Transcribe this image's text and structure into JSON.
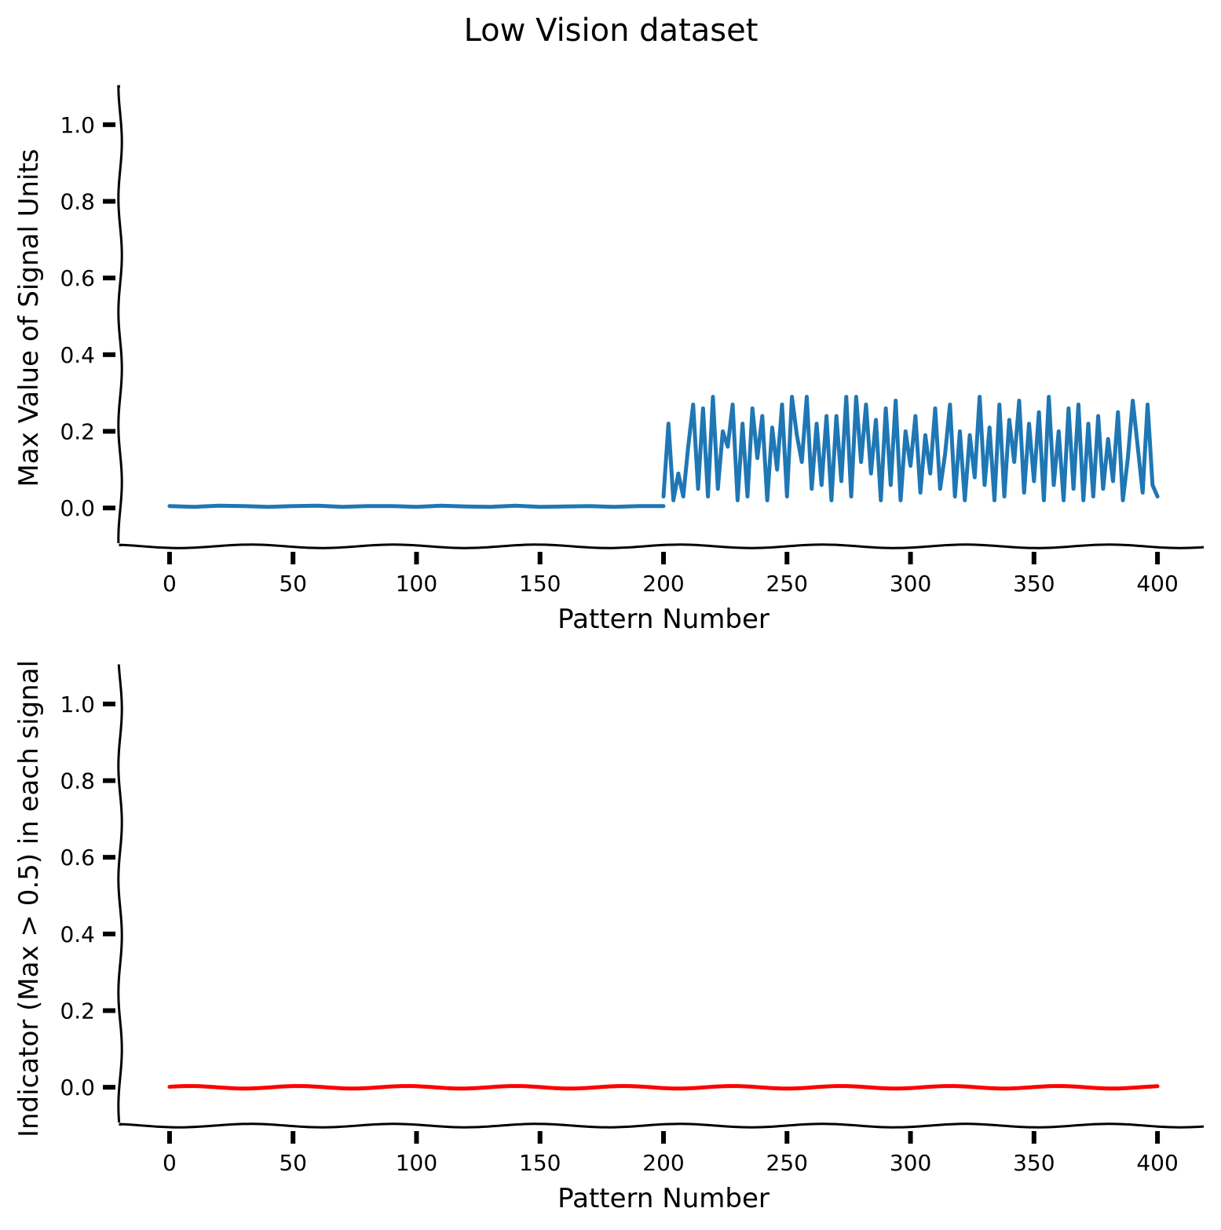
{
  "suptitle": "Low Vision dataset",
  "chart_data": [
    {
      "type": "line",
      "xlabel": "Pattern Number",
      "ylabel": "Max Value of Signal Units",
      "xlim": [
        -20,
        420
      ],
      "ylim": [
        -0.1,
        1.1
      ],
      "xticks": [
        0,
        50,
        100,
        150,
        200,
        250,
        300,
        350,
        400
      ],
      "xtick_labels": [
        "0",
        "50",
        "100",
        "150",
        "200",
        "250",
        "300",
        "350",
        "400"
      ],
      "yticks": [
        0.0,
        0.2,
        0.4,
        0.6,
        0.8,
        1.0
      ],
      "ytick_labels": [
        "0.0",
        "0.2",
        "0.4",
        "0.6",
        "0.8",
        "1.0"
      ],
      "grid": false,
      "series": [
        {
          "color": "#1f77b4",
          "segments": [
            {
              "x": [
                0,
                10,
                20,
                30,
                40,
                50,
                60,
                70,
                80,
                90,
                100,
                110,
                120,
                130,
                140,
                150,
                160,
                170,
                180,
                190,
                200
              ],
              "y": [
                0.005,
                0.003,
                0.006,
                0.005,
                0.003,
                0.005,
                0.006,
                0.003,
                0.005,
                0.005,
                0.003,
                0.006,
                0.004,
                0.003,
                0.006,
                0.003,
                0.004,
                0.005,
                0.003,
                0.005,
                0.005
              ]
            },
            {
              "x": [
                200,
                202,
                204,
                206,
                208,
                210,
                212,
                214,
                216,
                218,
                220,
                222,
                224,
                226,
                228,
                230,
                232,
                234,
                236,
                238,
                240,
                242,
                244,
                246,
                248,
                250,
                252,
                254,
                256,
                258,
                260,
                262,
                264,
                266,
                268,
                270,
                272,
                274,
                276,
                278,
                280,
                282,
                284,
                286,
                288,
                290,
                292,
                294,
                296,
                298,
                300,
                302,
                304,
                306,
                308,
                310,
                312,
                314,
                316,
                318,
                320,
                322,
                324,
                326,
                328,
                330,
                332,
                334,
                336,
                338,
                340,
                342,
                344,
                346,
                348,
                350,
                352,
                354,
                356,
                358,
                360,
                362,
                364,
                366,
                368,
                370,
                372,
                374,
                376,
                378,
                380,
                382,
                384,
                386,
                388,
                390,
                392,
                394,
                396,
                398,
                400
              ],
              "y": [
                0.03,
                0.22,
                0.02,
                0.09,
                0.03,
                0.16,
                0.27,
                0.05,
                0.26,
                0.03,
                0.29,
                0.05,
                0.2,
                0.16,
                0.27,
                0.02,
                0.22,
                0.03,
                0.26,
                0.13,
                0.24,
                0.02,
                0.21,
                0.1,
                0.27,
                0.03,
                0.29,
                0.19,
                0.12,
                0.29,
                0.05,
                0.22,
                0.06,
                0.24,
                0.02,
                0.24,
                0.07,
                0.29,
                0.03,
                0.29,
                0.12,
                0.27,
                0.09,
                0.23,
                0.02,
                0.26,
                0.06,
                0.28,
                0.02,
                0.2,
                0.11,
                0.24,
                0.04,
                0.19,
                0.09,
                0.26,
                0.05,
                0.14,
                0.27,
                0.03,
                0.2,
                0.02,
                0.19,
                0.08,
                0.29,
                0.06,
                0.21,
                0.02,
                0.27,
                0.03,
                0.23,
                0.12,
                0.28,
                0.04,
                0.22,
                0.07,
                0.25,
                0.02,
                0.29,
                0.06,
                0.2,
                0.02,
                0.26,
                0.05,
                0.27,
                0.02,
                0.22,
                0.03,
                0.24,
                0.05,
                0.18,
                0.07,
                0.25,
                0.02,
                0.13,
                0.28,
                0.16,
                0.04,
                0.27,
                0.06,
                0.03
              ]
            }
          ]
        }
      ]
    },
    {
      "type": "line",
      "xlabel": "Pattern Number",
      "ylabel": "Indicator (Max > 0.5) in each signal",
      "xlim": [
        -20,
        420
      ],
      "ylim": [
        -0.1,
        1.1
      ],
      "xticks": [
        0,
        50,
        100,
        150,
        200,
        250,
        300,
        350,
        400
      ],
      "xtick_labels": [
        "0",
        "50",
        "100",
        "150",
        "200",
        "250",
        "300",
        "350",
        "400"
      ],
      "yticks": [
        0.0,
        0.2,
        0.4,
        0.6,
        0.8,
        1.0
      ],
      "ytick_labels": [
        "0.0",
        "0.2",
        "0.4",
        "0.6",
        "0.8",
        "1.0"
      ],
      "grid": false,
      "series": [
        {
          "color": "#ff0000",
          "segments": [
            {
              "x": [
                0,
                400
              ],
              "y": [
                0,
                0
              ]
            }
          ]
        }
      ]
    }
  ]
}
